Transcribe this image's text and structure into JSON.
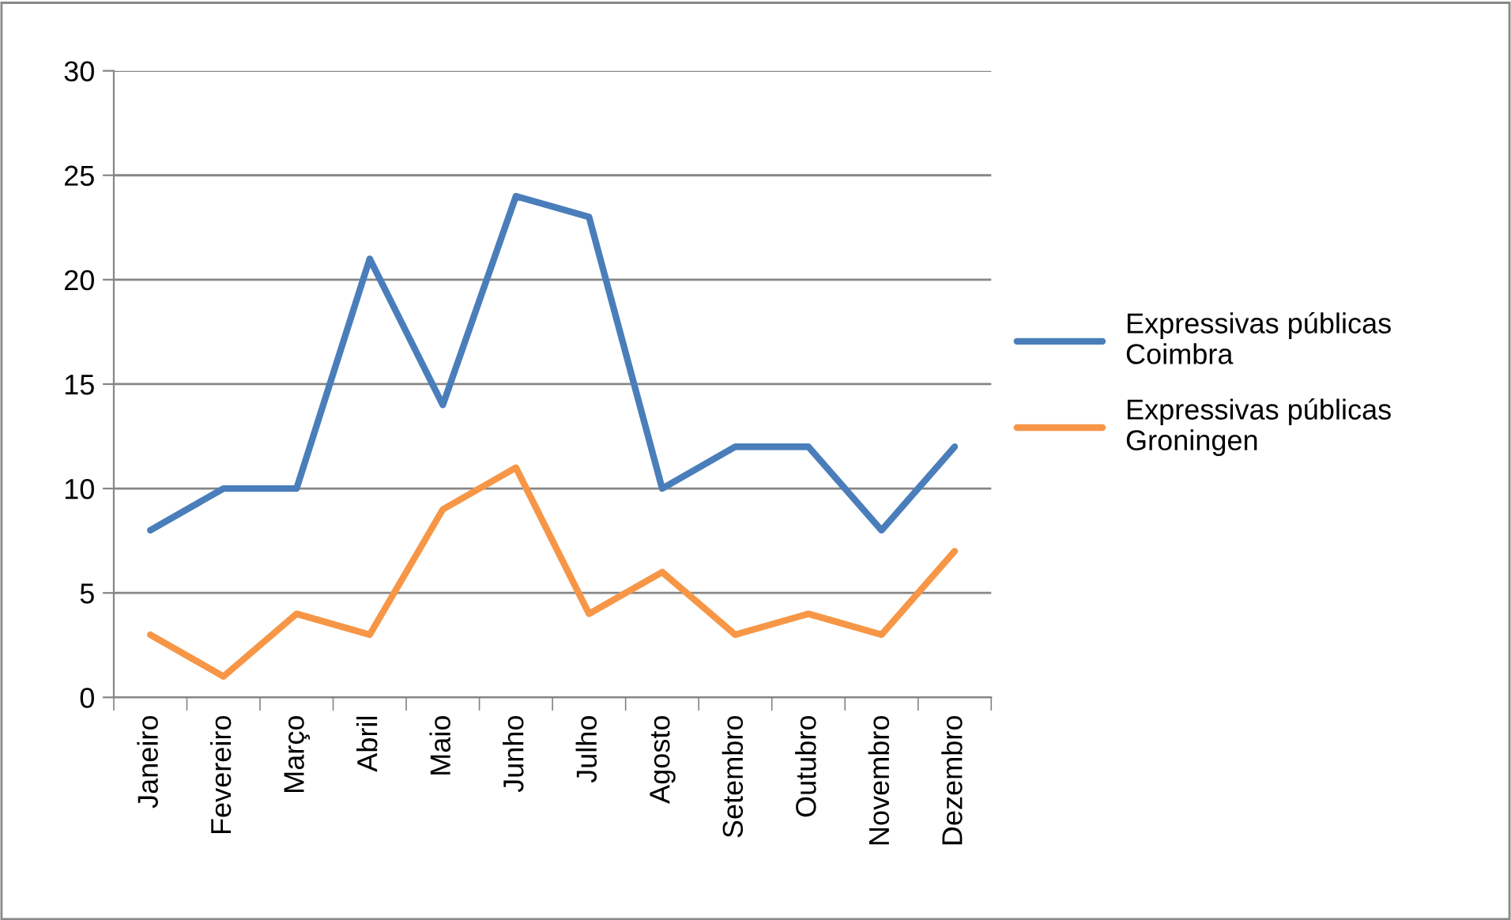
{
  "chart_data": {
    "type": "line",
    "categories": [
      "Janeiro",
      "Fevereiro",
      "Março",
      "Abril",
      "Maio",
      "Junho",
      "Julho",
      "Agosto",
      "Setembro",
      "Outubro",
      "Novembro",
      "Dezembro"
    ],
    "series": [
      {
        "name": "Expressivas públicas\nCoimbra",
        "color": "#4a7ebb",
        "values": [
          8,
          10,
          10,
          21,
          14,
          24,
          23,
          10,
          12,
          12,
          8,
          12
        ]
      },
      {
        "name": "Expressivas públicas\nGroningen",
        "color": "#f79646",
        "values": [
          3,
          1,
          4,
          3,
          9,
          11,
          4,
          6,
          3,
          4,
          3,
          7
        ]
      }
    ],
    "ylim": [
      0,
      30
    ],
    "yticks": [
      0,
      5,
      10,
      15,
      20,
      25,
      30
    ],
    "grid": "y",
    "legend": "right",
    "marker": "none",
    "line_style": "solid"
  }
}
